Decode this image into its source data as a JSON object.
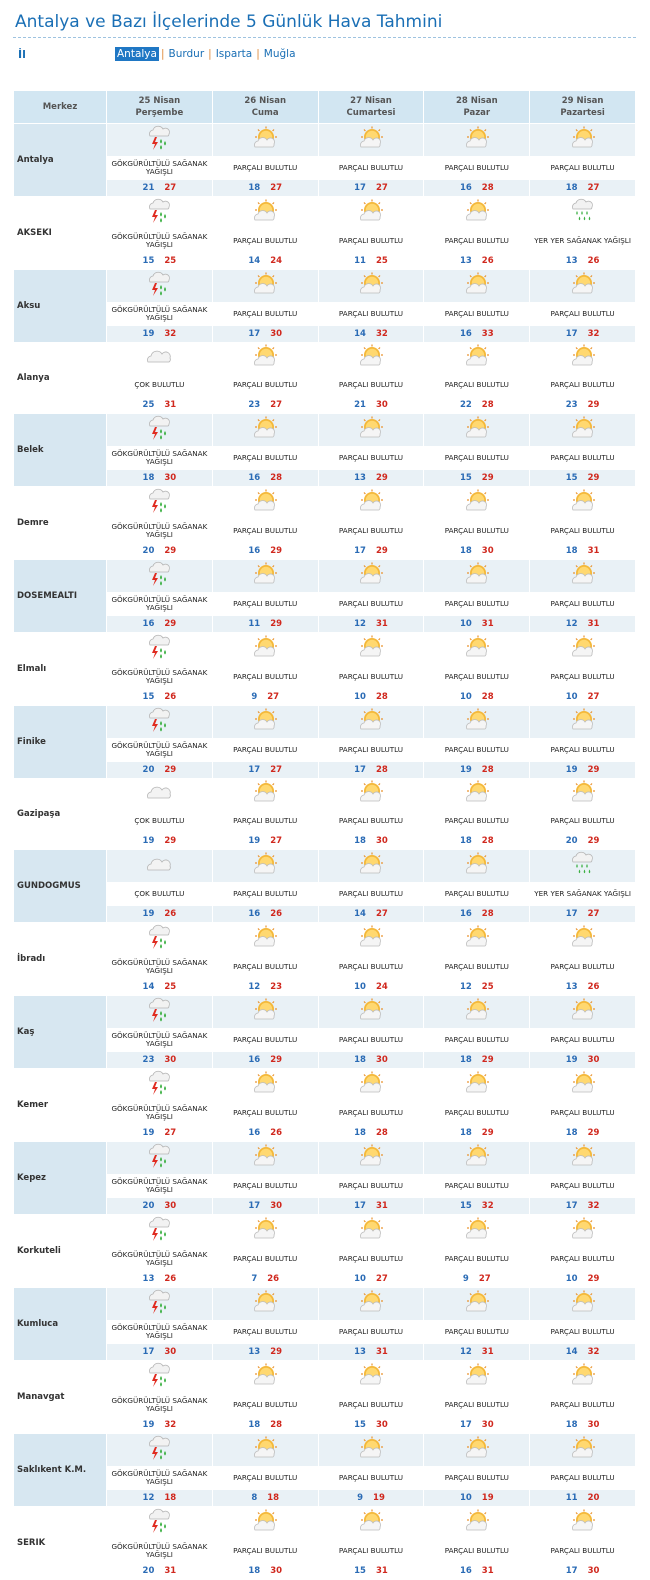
{
  "page": {
    "title": "Antalya ve Bazı İlçelerinde 5 Günlük Hava Tahmini",
    "il_label": "İl",
    "provinces": [
      "Antalya",
      "Burdur",
      "Isparta",
      "Muğla"
    ],
    "active_province": "Antalya"
  },
  "table": {
    "merkez_label": "Merkez",
    "days": [
      {
        "date": "25 Nisan",
        "weekday": "Perşembe"
      },
      {
        "date": "26 Nisan",
        "weekday": "Cuma"
      },
      {
        "date": "27 Nisan",
        "weekday": "Cumartesi"
      },
      {
        "date": "28 Nisan",
        "weekday": "Pazar"
      },
      {
        "date": "29 Nisan",
        "weekday": "Pazartesi"
      }
    ],
    "conditions": {
      "GSY": {
        "text": "GÖKGÜRÜLTÜLÜ SAĞANAK YAĞIŞLI",
        "icon": "thunderstorm-rain-icon"
      },
      "PB": {
        "text": "PARÇALI BULUTLU",
        "icon": "partly-cloudy-icon"
      },
      "CB": {
        "text": "ÇOK BULUTLU",
        "icon": "cloudy-icon"
      },
      "YYS": {
        "text": "YER YER SAĞANAK YAĞIŞLI",
        "icon": "showers-icon"
      }
    },
    "rows": [
      {
        "name": "Antalya",
        "days": [
          {
            "c": "GSY",
            "min": "21",
            "max": "27"
          },
          {
            "c": "PB",
            "min": "18",
            "max": "27"
          },
          {
            "c": "PB",
            "min": "17",
            "max": "27"
          },
          {
            "c": "PB",
            "min": "16",
            "max": "28"
          },
          {
            "c": "PB",
            "min": "18",
            "max": "27"
          }
        ]
      },
      {
        "name": "AKSEKI",
        "days": [
          {
            "c": "GSY",
            "min": "15",
            "max": "25"
          },
          {
            "c": "PB",
            "min": "14",
            "max": "24"
          },
          {
            "c": "PB",
            "min": "11",
            "max": "25"
          },
          {
            "c": "PB",
            "min": "13",
            "max": "26"
          },
          {
            "c": "YYS",
            "min": "13",
            "max": "26"
          }
        ]
      },
      {
        "name": "Aksu",
        "days": [
          {
            "c": "GSY",
            "min": "19",
            "max": "32"
          },
          {
            "c": "PB",
            "min": "17",
            "max": "30"
          },
          {
            "c": "PB",
            "min": "14",
            "max": "32"
          },
          {
            "c": "PB",
            "min": "16",
            "max": "33"
          },
          {
            "c": "PB",
            "min": "17",
            "max": "32"
          }
        ]
      },
      {
        "name": "Alanya",
        "days": [
          {
            "c": "CB",
            "min": "25",
            "max": "31"
          },
          {
            "c": "PB",
            "min": "23",
            "max": "27"
          },
          {
            "c": "PB",
            "min": "21",
            "max": "30"
          },
          {
            "c": "PB",
            "min": "22",
            "max": "28"
          },
          {
            "c": "PB",
            "min": "23",
            "max": "29"
          }
        ]
      },
      {
        "name": "Belek",
        "days": [
          {
            "c": "GSY",
            "min": "18",
            "max": "30"
          },
          {
            "c": "PB",
            "min": "16",
            "max": "28"
          },
          {
            "c": "PB",
            "min": "13",
            "max": "29"
          },
          {
            "c": "PB",
            "min": "15",
            "max": "29"
          },
          {
            "c": "PB",
            "min": "15",
            "max": "29"
          }
        ]
      },
      {
        "name": "Demre",
        "days": [
          {
            "c": "GSY",
            "min": "20",
            "max": "29"
          },
          {
            "c": "PB",
            "min": "16",
            "max": "29"
          },
          {
            "c": "PB",
            "min": "17",
            "max": "29"
          },
          {
            "c": "PB",
            "min": "18",
            "max": "30"
          },
          {
            "c": "PB",
            "min": "18",
            "max": "31"
          }
        ]
      },
      {
        "name": "DOSEMEALTI",
        "days": [
          {
            "c": "GSY",
            "min": "16",
            "max": "29"
          },
          {
            "c": "PB",
            "min": "11",
            "max": "29"
          },
          {
            "c": "PB",
            "min": "12",
            "max": "31"
          },
          {
            "c": "PB",
            "min": "10",
            "max": "31"
          },
          {
            "c": "PB",
            "min": "12",
            "max": "31"
          }
        ]
      },
      {
        "name": "Elmalı",
        "days": [
          {
            "c": "GSY",
            "min": "15",
            "max": "26"
          },
          {
            "c": "PB",
            "min": "9",
            "max": "27"
          },
          {
            "c": "PB",
            "min": "10",
            "max": "28"
          },
          {
            "c": "PB",
            "min": "10",
            "max": "28"
          },
          {
            "c": "PB",
            "min": "10",
            "max": "27"
          }
        ]
      },
      {
        "name": "Finike",
        "days": [
          {
            "c": "GSY",
            "min": "20",
            "max": "29"
          },
          {
            "c": "PB",
            "min": "17",
            "max": "27"
          },
          {
            "c": "PB",
            "min": "17",
            "max": "28"
          },
          {
            "c": "PB",
            "min": "19",
            "max": "28"
          },
          {
            "c": "PB",
            "min": "19",
            "max": "29"
          }
        ]
      },
      {
        "name": "Gazipaşa",
        "days": [
          {
            "c": "CB",
            "min": "19",
            "max": "29"
          },
          {
            "c": "PB",
            "min": "19",
            "max": "27"
          },
          {
            "c": "PB",
            "min": "18",
            "max": "30"
          },
          {
            "c": "PB",
            "min": "18",
            "max": "28"
          },
          {
            "c": "PB",
            "min": "20",
            "max": "29"
          }
        ]
      },
      {
        "name": "GUNDOGMUS",
        "days": [
          {
            "c": "CB",
            "min": "19",
            "max": "26"
          },
          {
            "c": "PB",
            "min": "16",
            "max": "26"
          },
          {
            "c": "PB",
            "min": "14",
            "max": "27"
          },
          {
            "c": "PB",
            "min": "16",
            "max": "28"
          },
          {
            "c": "YYS",
            "min": "17",
            "max": "27"
          }
        ]
      },
      {
        "name": "İbradı",
        "days": [
          {
            "c": "GSY",
            "min": "14",
            "max": "25"
          },
          {
            "c": "PB",
            "min": "12",
            "max": "23"
          },
          {
            "c": "PB",
            "min": "10",
            "max": "24"
          },
          {
            "c": "PB",
            "min": "12",
            "max": "25"
          },
          {
            "c": "PB",
            "min": "13",
            "max": "26"
          }
        ]
      },
      {
        "name": "Kaş",
        "days": [
          {
            "c": "GSY",
            "min": "23",
            "max": "30"
          },
          {
            "c": "PB",
            "min": "16",
            "max": "29"
          },
          {
            "c": "PB",
            "min": "18",
            "max": "30"
          },
          {
            "c": "PB",
            "min": "18",
            "max": "29"
          },
          {
            "c": "PB",
            "min": "19",
            "max": "30"
          }
        ]
      },
      {
        "name": "Kemer",
        "days": [
          {
            "c": "GSY",
            "min": "19",
            "max": "27"
          },
          {
            "c": "PB",
            "min": "16",
            "max": "26"
          },
          {
            "c": "PB",
            "min": "18",
            "max": "28"
          },
          {
            "c": "PB",
            "min": "18",
            "max": "29"
          },
          {
            "c": "PB",
            "min": "18",
            "max": "29"
          }
        ]
      },
      {
        "name": "Kepez",
        "days": [
          {
            "c": "GSY",
            "min": "20",
            "max": "30"
          },
          {
            "c": "PB",
            "min": "17",
            "max": "30"
          },
          {
            "c": "PB",
            "min": "17",
            "max": "31"
          },
          {
            "c": "PB",
            "min": "15",
            "max": "32"
          },
          {
            "c": "PB",
            "min": "17",
            "max": "32"
          }
        ]
      },
      {
        "name": "Korkuteli",
        "days": [
          {
            "c": "GSY",
            "min": "13",
            "max": "26"
          },
          {
            "c": "PB",
            "min": "7",
            "max": "26"
          },
          {
            "c": "PB",
            "min": "10",
            "max": "27"
          },
          {
            "c": "PB",
            "min": "9",
            "max": "27"
          },
          {
            "c": "PB",
            "min": "10",
            "max": "29"
          }
        ]
      },
      {
        "name": "Kumluca",
        "days": [
          {
            "c": "GSY",
            "min": "17",
            "max": "30"
          },
          {
            "c": "PB",
            "min": "13",
            "max": "29"
          },
          {
            "c": "PB",
            "min": "13",
            "max": "31"
          },
          {
            "c": "PB",
            "min": "12",
            "max": "31"
          },
          {
            "c": "PB",
            "min": "14",
            "max": "32"
          }
        ]
      },
      {
        "name": "Manavgat",
        "days": [
          {
            "c": "GSY",
            "min": "19",
            "max": "32"
          },
          {
            "c": "PB",
            "min": "18",
            "max": "28"
          },
          {
            "c": "PB",
            "min": "15",
            "max": "30"
          },
          {
            "c": "PB",
            "min": "17",
            "max": "30"
          },
          {
            "c": "PB",
            "min": "18",
            "max": "30"
          }
        ]
      },
      {
        "name": "Saklıkent K.M.",
        "days": [
          {
            "c": "GSY",
            "min": "12",
            "max": "18"
          },
          {
            "c": "PB",
            "min": "8",
            "max": "18"
          },
          {
            "c": "PB",
            "min": "9",
            "max": "19"
          },
          {
            "c": "PB",
            "min": "10",
            "max": "19"
          },
          {
            "c": "PB",
            "min": "11",
            "max": "20"
          }
        ]
      },
      {
        "name": "SERIK",
        "days": [
          {
            "c": "GSY",
            "min": "20",
            "max": "31"
          },
          {
            "c": "PB",
            "min": "18",
            "max": "30"
          },
          {
            "c": "PB",
            "min": "15",
            "max": "31"
          },
          {
            "c": "PB",
            "min": "16",
            "max": "31"
          },
          {
            "c": "PB",
            "min": "17",
            "max": "30"
          }
        ]
      }
    ]
  },
  "colors": {
    "accent": "#1a6fb5",
    "header_bg": "#d2e6f2",
    "row_shade": "#e9f1f6",
    "min_temp": "#2a6bb5",
    "max_temp": "#d0281e"
  }
}
